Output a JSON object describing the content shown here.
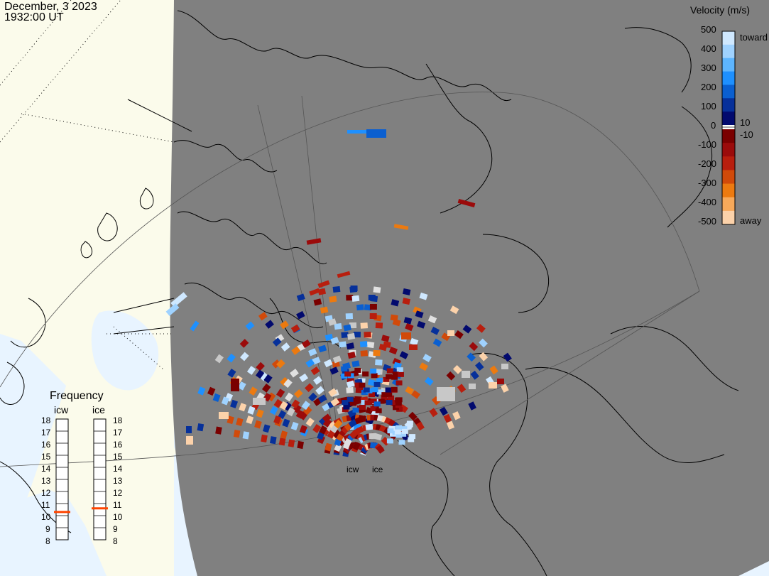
{
  "title": {
    "date": "December, 3 2023",
    "time": "1932:00 UT"
  },
  "colorbar": {
    "title": "Velocity (m/s)",
    "ticks": [
      "500",
      "400",
      "300",
      "200",
      "100",
      "0",
      "-100",
      "-200",
      "-300",
      "-400",
      "-500"
    ],
    "mid_pos": "10",
    "mid_neg": "-10",
    "toward_label": "toward",
    "away_label": "away",
    "colors_toward": [
      "#cfe8ff",
      "#9fd2ff",
      "#5db5ff",
      "#1e90ff",
      "#0a5fd0",
      "#06309a",
      "#020a6e"
    ],
    "colors_away": [
      "#7a0000",
      "#9b0b0b",
      "#b81e0e",
      "#d14a0a",
      "#ec7a10",
      "#f7a95a",
      "#fcd2aa"
    ]
  },
  "frequency": {
    "title": "Frequency",
    "radars": [
      {
        "name": "icw",
        "marker_mhz": 10.3
      },
      {
        "name": "ice",
        "marker_mhz": 10.6
      }
    ],
    "ticks": [
      "8",
      "9",
      "10",
      "11",
      "12",
      "13",
      "14",
      "15",
      "16",
      "17",
      "18"
    ]
  },
  "sites": [
    {
      "name": "icw"
    },
    {
      "name": "ice"
    }
  ],
  "colors": {
    "night": "#808080",
    "day_land": "#fbfbeb",
    "day_ocean": "#e8f4ff",
    "coast": "#000000",
    "marker": "#ff4400"
  }
}
